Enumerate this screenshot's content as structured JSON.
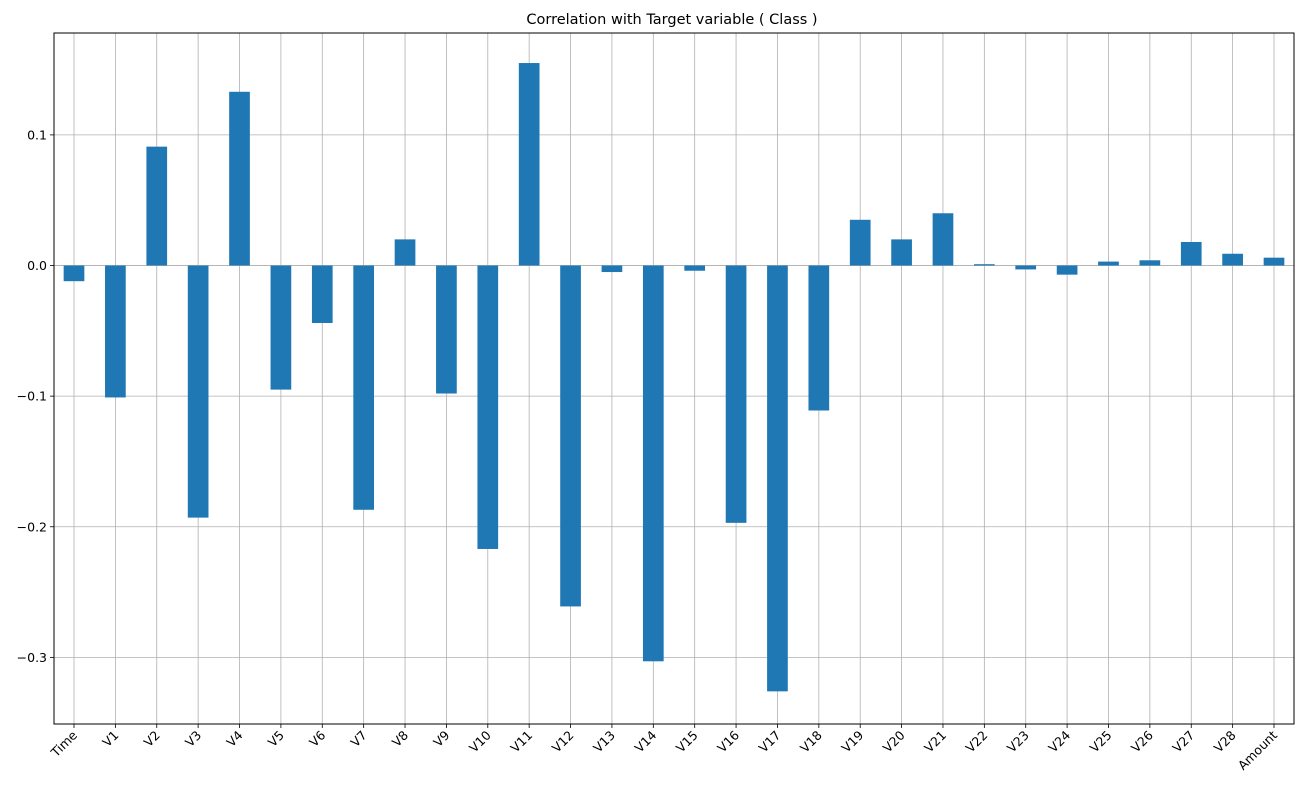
{
  "chart_data": {
    "type": "bar",
    "title": "Correlation with Target variable ( Class )",
    "xlabel": "",
    "ylabel": "",
    "categories": [
      "Time",
      "V1",
      "V2",
      "V3",
      "V4",
      "V5",
      "V6",
      "V7",
      "V8",
      "V9",
      "V10",
      "V11",
      "V12",
      "V13",
      "V14",
      "V15",
      "V16",
      "V17",
      "V18",
      "V19",
      "V20",
      "V21",
      "V22",
      "V23",
      "V24",
      "V25",
      "V26",
      "V27",
      "V28",
      "Amount"
    ],
    "values": [
      -0.012,
      -0.101,
      0.091,
      -0.193,
      0.133,
      -0.095,
      -0.044,
      -0.187,
      0.02,
      -0.098,
      -0.217,
      0.155,
      -0.261,
      -0.005,
      -0.303,
      -0.004,
      -0.197,
      -0.326,
      -0.111,
      0.035,
      0.02,
      0.04,
      0.001,
      -0.003,
      -0.007,
      0.003,
      0.004,
      0.018,
      0.009,
      0.006
    ],
    "ylim": [
      -0.351,
      0.178
    ],
    "yticks": [
      -0.3,
      -0.2,
      -0.1,
      0.0,
      0.1
    ],
    "ytick_labels": [
      "−0.3",
      "−0.2",
      "−0.1",
      "0.0",
      "0.1"
    ],
    "grid": true,
    "bar_color": "#1f77b4",
    "grid_color": "#b0b0b0"
  }
}
